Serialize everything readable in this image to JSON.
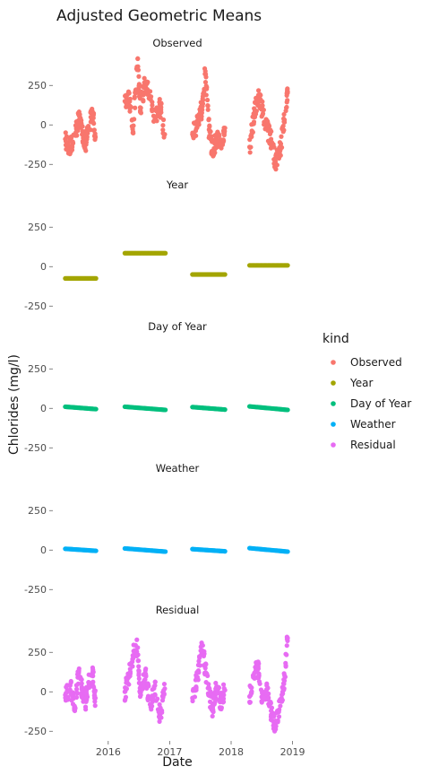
{
  "chart_data": {
    "type": "scatter",
    "title": "Adjusted Geometric Means",
    "xlabel": "Date",
    "ylabel": "Chlorides (mg/l)",
    "x_ticks": [
      "2016",
      "2017",
      "2018",
      "2019"
    ],
    "x_tick_values": [
      2016,
      2017,
      2018,
      2019
    ],
    "xlim": [
      2015.2,
      2019.05
    ],
    "y_ticks": [
      -250,
      0,
      250
    ],
    "ylim": [
      -300,
      450
    ],
    "legend": {
      "title": "kind",
      "placement": "right"
    },
    "facets": [
      {
        "name": "Observed",
        "color": "#F8766D",
        "segments": [
          {
            "x": [
              2015.3,
              2015.38,
              2015.45,
              2015.52,
              2015.58,
              2015.63,
              2015.68,
              2015.75,
              2015.79
            ],
            "y": [
              -90,
              -150,
              -60,
              30,
              -40,
              -120,
              -20,
              70,
              -80
            ]
          },
          {
            "x": [
              2016.27,
              2016.33,
              2016.4,
              2016.48,
              2016.52,
              2016.6,
              2016.68,
              2016.76,
              2016.84,
              2016.92
            ],
            "y": [
              150,
              210,
              -50,
              420,
              110,
              260,
              180,
              40,
              130,
              -60
            ]
          },
          {
            "x": [
              2017.37,
              2017.45,
              2017.52,
              2017.58,
              2017.64,
              2017.7,
              2017.76,
              2017.83,
              2017.9
            ],
            "y": [
              -60,
              10,
              100,
              340,
              -30,
              -170,
              -80,
              -140,
              -20
            ]
          },
          {
            "x": [
              2018.3,
              2018.37,
              2018.44,
              2018.5,
              2018.58,
              2018.65,
              2018.72,
              2018.8,
              2018.86,
              2018.92
            ],
            "y": [
              -140,
              50,
              180,
              110,
              -20,
              -90,
              -230,
              -160,
              20,
              210
            ]
          }
        ]
      },
      {
        "name": "Year",
        "color": "#A3A500",
        "segments": [
          {
            "x": [
              2015.3,
              2015.8
            ],
            "y": [
              -75,
              -75
            ]
          },
          {
            "x": [
              2016.27,
              2016.93
            ],
            "y": [
              85,
              85
            ]
          },
          {
            "x": [
              2017.37,
              2017.9
            ],
            "y": [
              -50,
              -50
            ]
          },
          {
            "x": [
              2018.3,
              2018.92
            ],
            "y": [
              8,
              8
            ]
          }
        ]
      },
      {
        "name": "Day of Year",
        "color": "#00BF7D",
        "segments": [
          {
            "x": [
              2015.3,
              2015.8
            ],
            "y": [
              10,
              -5
            ]
          },
          {
            "x": [
              2016.27,
              2016.93
            ],
            "y": [
              10,
              -10
            ]
          },
          {
            "x": [
              2017.37,
              2017.9
            ],
            "y": [
              8,
              -8
            ]
          },
          {
            "x": [
              2018.3,
              2018.92
            ],
            "y": [
              12,
              -10
            ]
          }
        ]
      },
      {
        "name": "Weather",
        "color": "#00B0F6",
        "segments": [
          {
            "x": [
              2015.3,
              2015.8
            ],
            "y": [
              8,
              -5
            ]
          },
          {
            "x": [
              2016.27,
              2016.93
            ],
            "y": [
              10,
              -10
            ]
          },
          {
            "x": [
              2017.37,
              2017.9
            ],
            "y": [
              6,
              -8
            ]
          },
          {
            "x": [
              2018.3,
              2018.92
            ],
            "y": [
              12,
              -10
            ]
          }
        ]
      },
      {
        "name": "Residual",
        "color": "#E76BF3",
        "segments": [
          {
            "x": [
              2015.3,
              2015.38,
              2015.45,
              2015.52,
              2015.58,
              2015.63,
              2015.68,
              2015.75,
              2015.79
            ],
            "y": [
              -20,
              40,
              -90,
              120,
              0,
              -60,
              60,
              100,
              -40
            ]
          },
          {
            "x": [
              2016.27,
              2016.33,
              2016.4,
              2016.48,
              2016.52,
              2016.6,
              2016.68,
              2016.76,
              2016.84,
              2016.92
            ],
            "y": [
              0,
              90,
              230,
              280,
              -30,
              120,
              -80,
              40,
              -150,
              20
            ]
          },
          {
            "x": [
              2017.37,
              2017.45,
              2017.52,
              2017.58,
              2017.64,
              2017.7,
              2017.76,
              2017.83,
              2017.9
            ],
            "y": [
              -40,
              80,
              310,
              150,
              -20,
              -100,
              30,
              -60,
              10
            ]
          },
          {
            "x": [
              2018.3,
              2018.37,
              2018.44,
              2018.5,
              2018.58,
              2018.65,
              2018.72,
              2018.8,
              2018.86,
              2018.92
            ],
            "y": [
              -30,
              100,
              160,
              -60,
              40,
              -120,
              -210,
              -90,
              50,
              340
            ]
          }
        ]
      }
    ]
  }
}
